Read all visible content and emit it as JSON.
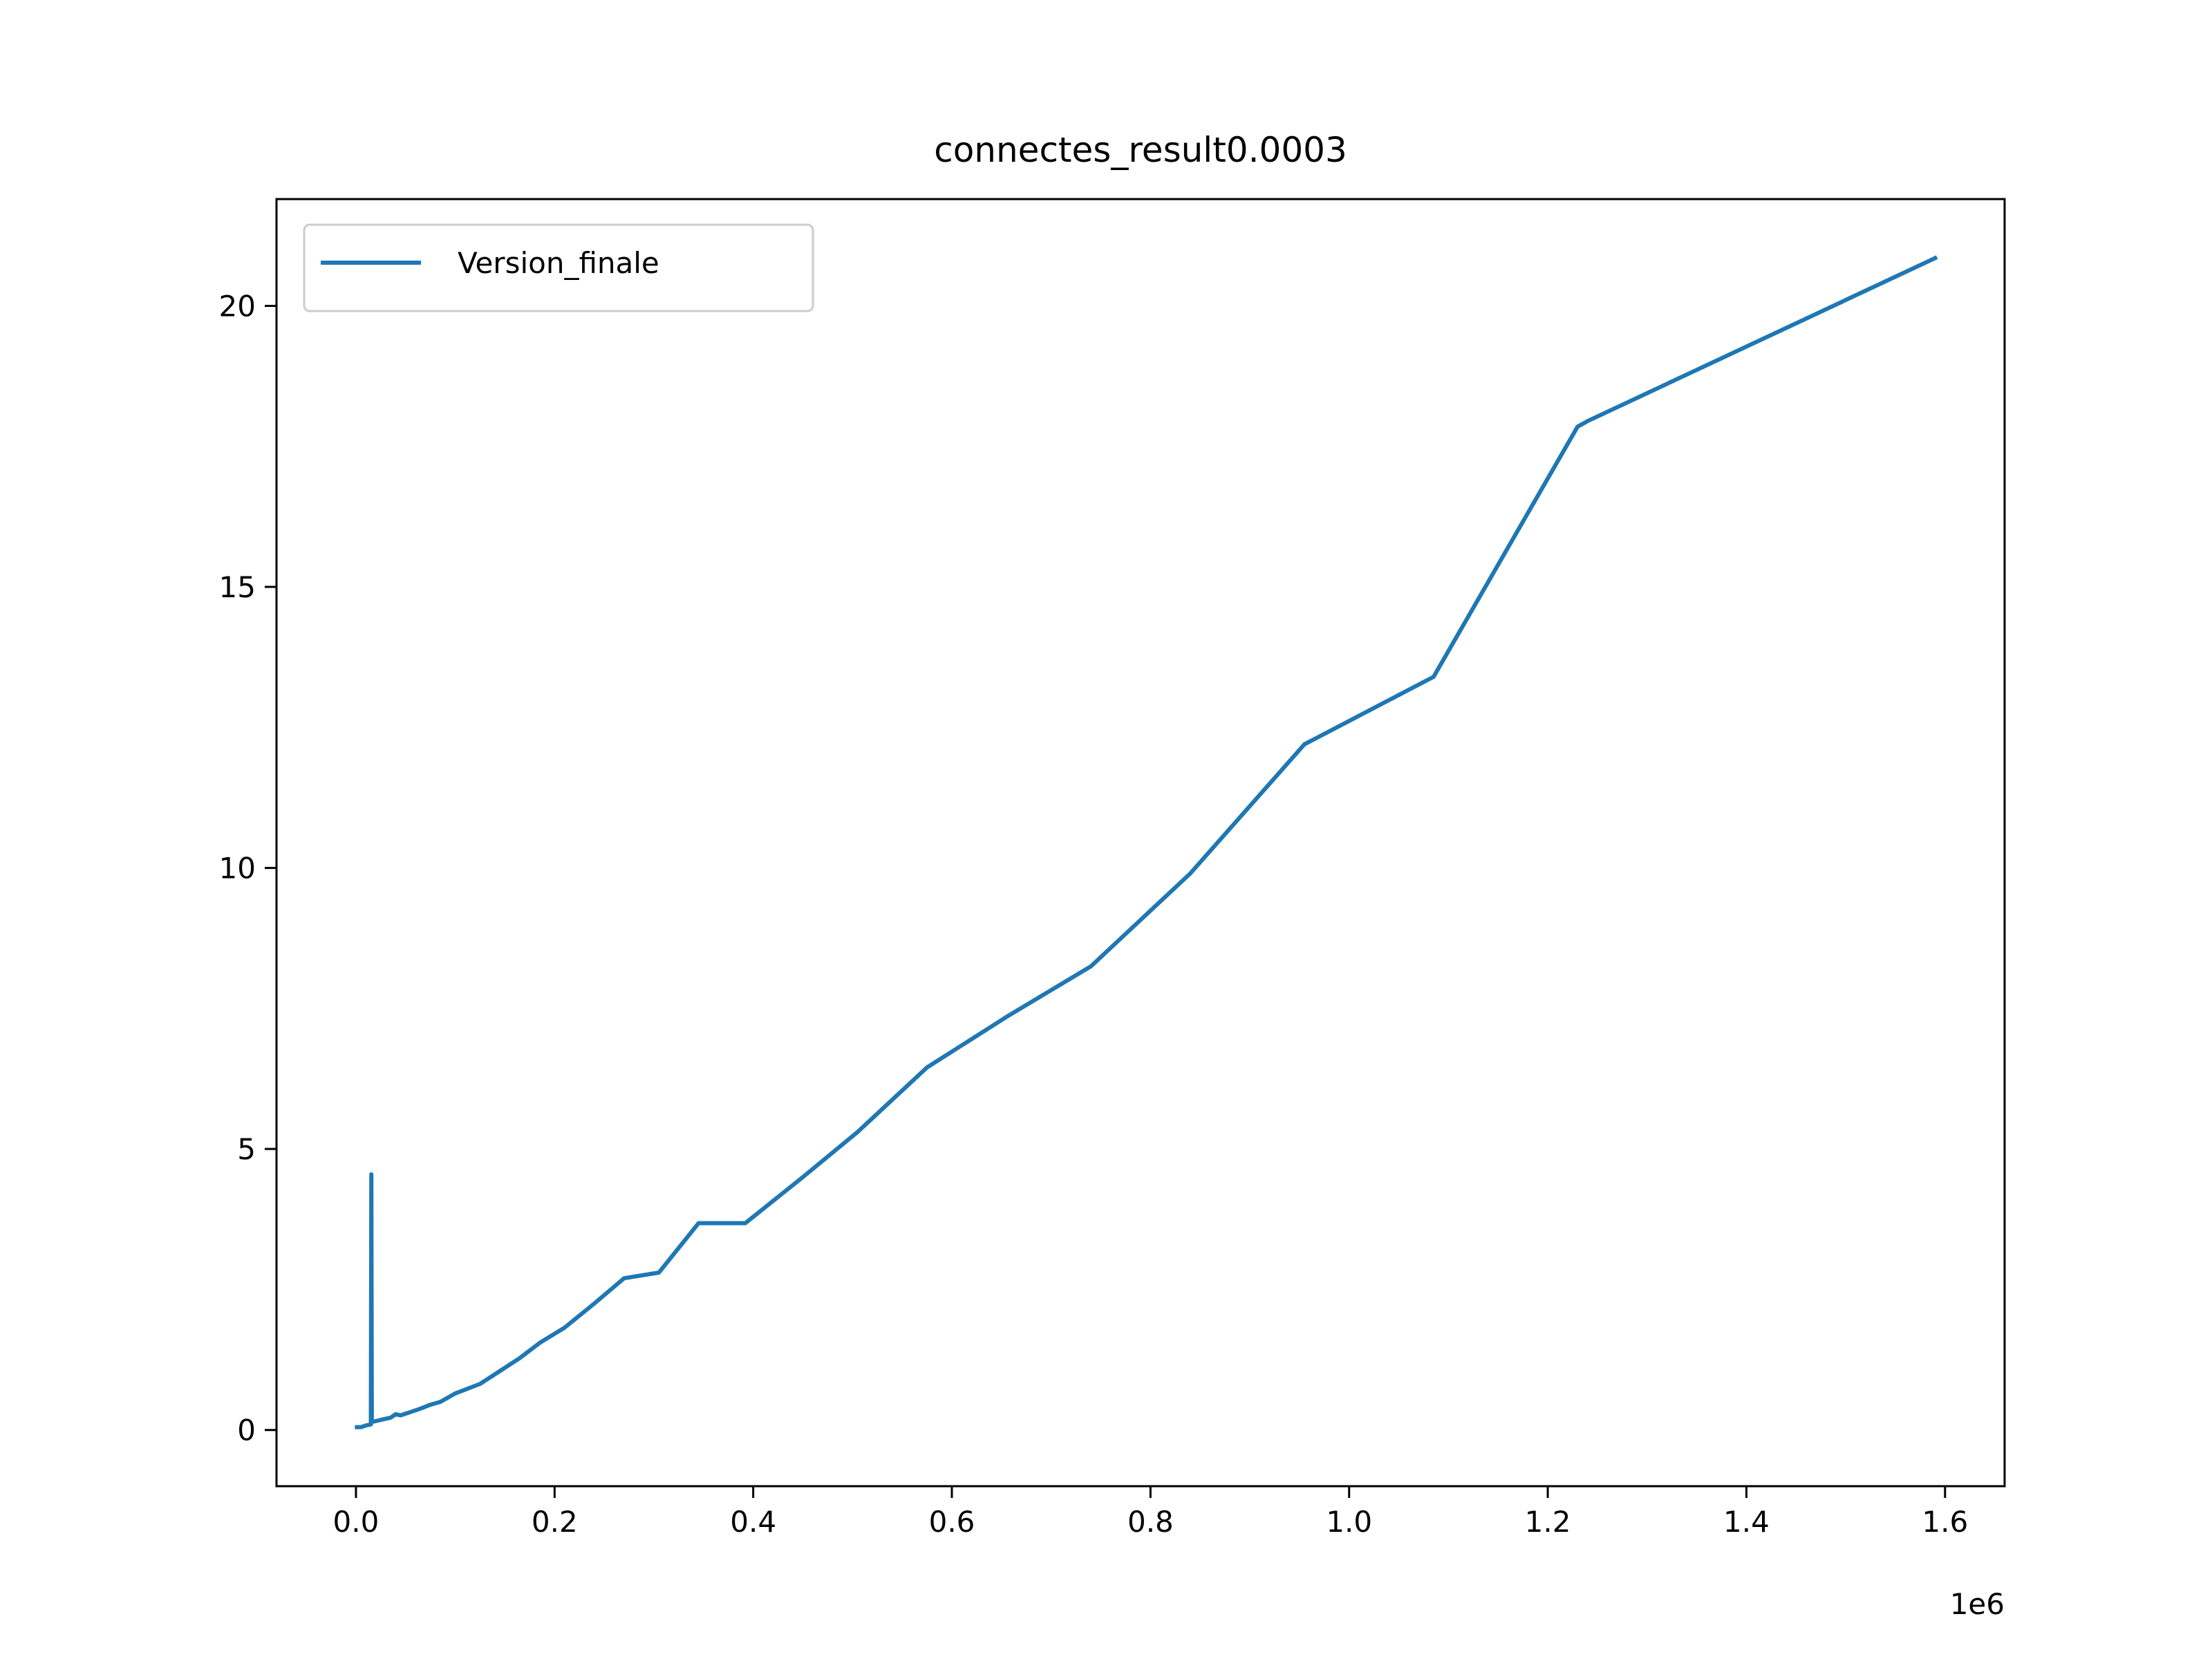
{
  "chart_data": {
    "type": "line",
    "title": "connectes_result0.0003",
    "xlabel": "",
    "ylabel": "",
    "x_offset_label": "1e6",
    "xlim": [
      -80000,
      1660000
    ],
    "ylim": [
      -1.0,
      21.9
    ],
    "x_ticks": [
      0,
      200000,
      400000,
      600000,
      800000,
      1000000,
      1200000,
      1400000,
      1600000
    ],
    "x_tick_labels": [
      "0.0",
      "0.2",
      "0.4",
      "0.6",
      "0.8",
      "1.0",
      "1.2",
      "1.4",
      "1.6"
    ],
    "y_ticks": [
      0,
      5,
      10,
      15,
      20
    ],
    "y_tick_labels": [
      "0",
      "5",
      "10",
      "15",
      "20"
    ],
    "grid": false,
    "legend_position": "upper-left",
    "series": [
      {
        "name": "Version_finale",
        "color": "#1f77b4",
        "x": [
          1000,
          5000,
          10000,
          15000,
          15500,
          16000,
          18000,
          25000,
          35000,
          40000,
          45000,
          55000,
          65000,
          75000,
          85000,
          100000,
          125000,
          145000,
          165000,
          185000,
          210000,
          240000,
          270000,
          305000,
          345000,
          392000,
          450000,
          505000,
          575000,
          655000,
          740000,
          840000,
          955000,
          1085000,
          1230000,
          1240000,
          1590000
        ],
        "y": [
          0.05,
          0.05,
          0.08,
          0.1,
          4.55,
          0.15,
          0.15,
          0.18,
          0.22,
          0.28,
          0.26,
          0.32,
          0.38,
          0.45,
          0.5,
          0.65,
          0.82,
          1.05,
          1.28,
          1.55,
          1.82,
          2.25,
          2.7,
          2.8,
          3.68,
          3.68,
          4.5,
          5.3,
          6.45,
          7.35,
          8.25,
          9.9,
          12.2,
          13.4,
          17.85,
          17.95,
          20.85
        ]
      }
    ]
  }
}
